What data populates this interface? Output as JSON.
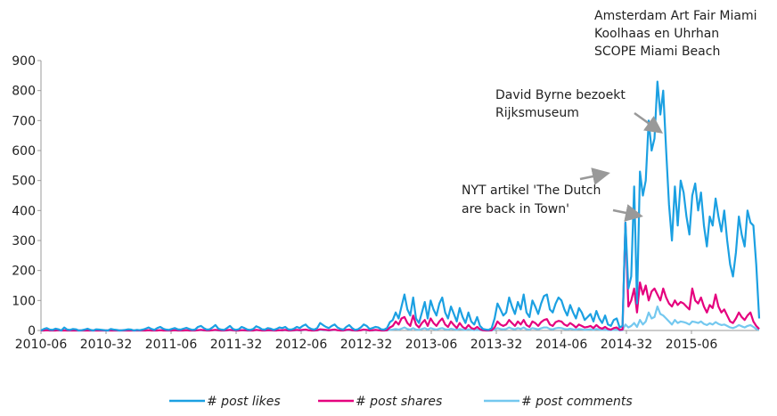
{
  "chart_data": {
    "type": "line",
    "ylim": [
      0,
      900
    ],
    "yticks": [
      0,
      100,
      200,
      300,
      400,
      500,
      600,
      700,
      800,
      900
    ],
    "xtick_labels": [
      "2010-06",
      "2010-32",
      "2011-06",
      "2011-32",
      "2012-06",
      "2012-32",
      "2013-06",
      "2013-32",
      "2014-06",
      "2014-32",
      "2015-06"
    ],
    "x_start": "2010-06",
    "series": [
      {
        "name": "# post likes",
        "color": "#1ba0e2",
        "values": [
          0,
          5,
          8,
          3,
          2,
          6,
          4,
          0,
          10,
          3,
          2,
          5,
          4,
          0,
          1,
          3,
          6,
          2,
          0,
          4,
          3,
          2,
          1,
          0,
          5,
          3,
          2,
          0,
          1,
          2,
          4,
          3,
          0,
          2,
          1,
          3,
          6,
          10,
          5,
          2,
          8,
          12,
          6,
          3,
          2,
          5,
          8,
          4,
          3,
          6,
          9,
          5,
          2,
          3,
          12,
          15,
          8,
          3,
          4,
          10,
          18,
          6,
          3,
          2,
          8,
          15,
          5,
          2,
          4,
          12,
          8,
          3,
          2,
          5,
          14,
          10,
          4,
          3,
          8,
          6,
          2,
          5,
          10,
          8,
          12,
          4,
          3,
          6,
          12,
          8,
          15,
          20,
          10,
          5,
          3,
          8,
          25,
          18,
          12,
          8,
          15,
          20,
          10,
          5,
          3,
          12,
          18,
          8,
          2,
          4,
          10,
          20,
          15,
          5,
          8,
          12,
          10,
          4,
          3,
          8,
          28,
          35,
          60,
          40,
          80,
          120,
          70,
          50,
          110,
          40,
          25,
          60,
          95,
          40,
          100,
          70,
          50,
          90,
          110,
          60,
          40,
          80,
          55,
          30,
          75,
          45,
          25,
          60,
          30,
          20,
          45,
          15,
          5,
          3,
          2,
          8,
          40,
          90,
          70,
          50,
          60,
          110,
          80,
          55,
          95,
          70,
          120,
          60,
          45,
          100,
          80,
          55,
          90,
          115,
          120,
          70,
          60,
          90,
          110,
          100,
          70,
          50,
          85,
          60,
          40,
          75,
          60,
          35,
          45,
          55,
          30,
          65,
          40,
          25,
          50,
          20,
          15,
          35,
          40,
          10,
          15,
          360,
          140,
          180,
          480,
          90,
          530,
          450,
          500,
          700,
          600,
          640,
          830,
          720,
          800,
          600,
          420,
          300,
          480,
          350,
          500,
          460,
          380,
          320,
          450,
          490,
          400,
          460,
          350,
          280,
          380,
          350,
          440,
          380,
          330,
          400,
          300,
          220,
          180,
          260,
          380,
          320,
          280,
          400,
          360,
          350,
          220,
          40
        ]
      },
      {
        "name": "# post shares",
        "color": "#e5007e",
        "values": [
          0,
          0,
          1,
          0,
          0,
          0,
          1,
          0,
          0,
          0,
          0,
          0,
          0,
          0,
          0,
          0,
          0,
          0,
          0,
          0,
          0,
          0,
          0,
          0,
          0,
          0,
          0,
          0,
          0,
          0,
          0,
          0,
          0,
          0,
          0,
          0,
          0,
          1,
          0,
          0,
          0,
          1,
          0,
          0,
          0,
          0,
          1,
          0,
          0,
          0,
          1,
          0,
          0,
          0,
          1,
          2,
          1,
          0,
          0,
          1,
          2,
          1,
          0,
          0,
          1,
          2,
          1,
          0,
          0,
          1,
          1,
          0,
          0,
          0,
          2,
          1,
          0,
          0,
          1,
          1,
          0,
          0,
          1,
          1,
          2,
          0,
          0,
          1,
          2,
          1,
          2,
          3,
          1,
          0,
          0,
          1,
          4,
          3,
          2,
          1,
          2,
          3,
          1,
          0,
          0,
          2,
          3,
          1,
          0,
          0,
          1,
          3,
          2,
          0,
          1,
          2,
          1,
          0,
          0,
          1,
          10,
          15,
          30,
          20,
          40,
          45,
          25,
          15,
          50,
          20,
          10,
          25,
          35,
          15,
          40,
          25,
          15,
          30,
          40,
          20,
          12,
          30,
          18,
          8,
          25,
          12,
          6,
          18,
          8,
          5,
          12,
          4,
          1,
          0,
          0,
          1,
          10,
          30,
          20,
          15,
          20,
          35,
          25,
          15,
          30,
          20,
          35,
          18,
          12,
          30,
          25,
          15,
          28,
          35,
          38,
          20,
          15,
          28,
          32,
          30,
          20,
          15,
          25,
          18,
          10,
          20,
          15,
          10,
          12,
          15,
          8,
          18,
          10,
          6,
          12,
          5,
          3,
          8,
          10,
          2,
          3,
          360,
          80,
          100,
          140,
          60,
          160,
          120,
          150,
          100,
          130,
          140,
          120,
          100,
          140,
          110,
          90,
          80,
          100,
          85,
          95,
          90,
          80,
          70,
          140,
          100,
          90,
          110,
          80,
          60,
          85,
          75,
          120,
          80,
          60,
          70,
          50,
          30,
          25,
          40,
          60,
          45,
          35,
          50,
          60,
          30,
          15,
          5
        ]
      },
      {
        "name": "# post comments",
        "color": "#74c8ef",
        "values": [
          0,
          0,
          0,
          0,
          0,
          0,
          0,
          0,
          1,
          0,
          0,
          0,
          0,
          0,
          0,
          0,
          0,
          0,
          0,
          0,
          0,
          0,
          0,
          0,
          0,
          0,
          0,
          0,
          0,
          0,
          0,
          0,
          0,
          0,
          0,
          0,
          0,
          0,
          0,
          0,
          0,
          1,
          0,
          0,
          0,
          0,
          0,
          0,
          0,
          0,
          0,
          0,
          0,
          0,
          1,
          1,
          0,
          0,
          0,
          1,
          1,
          0,
          0,
          0,
          0,
          1,
          0,
          0,
          0,
          1,
          0,
          0,
          0,
          0,
          1,
          1,
          0,
          0,
          0,
          0,
          0,
          0,
          1,
          0,
          1,
          0,
          0,
          0,
          1,
          0,
          1,
          2,
          1,
          0,
          0,
          0,
          2,
          1,
          1,
          0,
          1,
          2,
          1,
          0,
          0,
          1,
          1,
          0,
          0,
          0,
          1,
          2,
          1,
          0,
          0,
          1,
          1,
          0,
          0,
          0,
          2,
          3,
          5,
          3,
          6,
          10,
          5,
          3,
          8,
          3,
          2,
          5,
          8,
          3,
          8,
          5,
          3,
          6,
          8,
          4,
          3,
          6,
          4,
          2,
          5,
          3,
          2,
          4,
          2,
          1,
          3,
          1,
          0,
          0,
          0,
          0,
          3,
          8,
          5,
          4,
          5,
          10,
          6,
          4,
          8,
          5,
          10,
          4,
          3,
          8,
          6,
          4,
          7,
          10,
          10,
          5,
          4,
          7,
          9,
          8,
          5,
          4,
          6,
          4,
          3,
          5,
          4,
          2,
          3,
          4,
          2,
          5,
          3,
          2,
          3,
          1,
          1,
          2,
          3,
          0,
          1,
          20,
          10,
          15,
          25,
          12,
          35,
          20,
          30,
          60,
          40,
          45,
          80,
          55,
          50,
          40,
          30,
          20,
          35,
          25,
          30,
          28,
          25,
          20,
          30,
          28,
          25,
          30,
          22,
          18,
          24,
          20,
          28,
          22,
          18,
          20,
          15,
          10,
          8,
          12,
          18,
          14,
          10,
          15,
          18,
          12,
          5,
          2
        ]
      }
    ],
    "annotations": [
      {
        "lines": [
          "Amsterdam Art Fair Miami",
          "Koolhaas en Uhrhan",
          "SCOPE Miami Beach"
        ]
      },
      {
        "lines": [
          "David Byrne bezoekt",
          "Rijksmuseum"
        ]
      },
      {
        "lines": [
          "NYT artikel 'The Dutch",
          "are back in Town'"
        ]
      }
    ]
  }
}
